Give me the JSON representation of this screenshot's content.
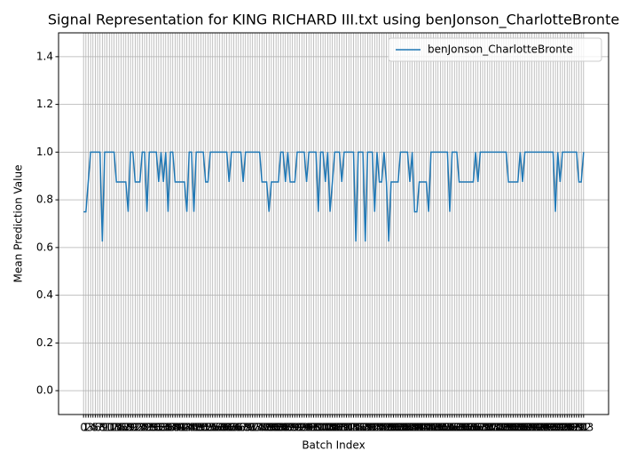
{
  "chart_data": {
    "type": "line",
    "title": "Signal Representation for KING RICHARD III.txt using benJonson_CharlotteBronte",
    "xlabel": "Batch Index",
    "ylabel": "Mean Prediction Value",
    "x": [
      0,
      1,
      2,
      3,
      4,
      5,
      6,
      7,
      8,
      9,
      10,
      11,
      12,
      13,
      14,
      15,
      16,
      17,
      18,
      19,
      20,
      21,
      22,
      23,
      24,
      25,
      26,
      27,
      28,
      29,
      30,
      31,
      32,
      33,
      34,
      35,
      36,
      37,
      38,
      39,
      40,
      41,
      42,
      43,
      44,
      45,
      46,
      47,
      48,
      49,
      50,
      51,
      52,
      53,
      54,
      55,
      56,
      57,
      58,
      59,
      60,
      61,
      62,
      63,
      64,
      65,
      66,
      67,
      68,
      69,
      70,
      71,
      72,
      73,
      74,
      75,
      76,
      77,
      78,
      79,
      80,
      81,
      82,
      83,
      84,
      85,
      86,
      87,
      88,
      89,
      90,
      91,
      92,
      93,
      94,
      95,
      96,
      97,
      98,
      99,
      100,
      101,
      102,
      103,
      104,
      105,
      106,
      107,
      108,
      109,
      110,
      111,
      112,
      113,
      114,
      115,
      116,
      117,
      118,
      119,
      120,
      121,
      122,
      123,
      124,
      125,
      126,
      127,
      128,
      129,
      130,
      131,
      132,
      133,
      134,
      135,
      136,
      137,
      138,
      139,
      140,
      141,
      142,
      143,
      144,
      145,
      146,
      147,
      148,
      149,
      150,
      151,
      152,
      153,
      154,
      155,
      156,
      157,
      158,
      159,
      160,
      161,
      162,
      163,
      164,
      165,
      166,
      167,
      168,
      169,
      170,
      171,
      172,
      173,
      174,
      175,
      176,
      177,
      178,
      179,
      180,
      181,
      182,
      183,
      184,
      185,
      186,
      187,
      188,
      189,
      190,
      191,
      192,
      193,
      194,
      195,
      196,
      197,
      198,
      199,
      200,
      201,
      202,
      203,
      204,
      205,
      206,
      207,
      208,
      209,
      210,
      211,
      212,
      213
    ],
    "series": [
      {
        "name": "benJonson_CharlotteBronte",
        "color": "#1f77b4",
        "values": [
          0.75,
          0.75,
          0.875,
          1,
          1,
          1,
          1,
          1,
          0.625,
          1,
          1,
          1,
          1,
          1,
          0.875,
          0.875,
          0.875,
          0.875,
          0.875,
          0.75,
          1,
          1,
          0.875,
          0.875,
          0.875,
          1,
          1,
          0.75,
          1,
          1,
          1,
          1,
          0.875,
          1,
          0.875,
          1,
          0.75,
          1,
          1,
          0.875,
          0.875,
          0.875,
          0.875,
          0.875,
          0.75,
          1,
          1,
          0.75,
          1,
          1,
          1,
          1,
          0.875,
          0.875,
          1,
          1,
          1,
          1,
          1,
          1,
          1,
          1,
          0.875,
          1,
          1,
          1,
          1,
          1,
          0.875,
          1,
          1,
          1,
          1,
          1,
          1,
          1,
          0.875,
          0.875,
          0.875,
          0.75,
          0.875,
          0.875,
          0.875,
          0.875,
          1,
          1,
          0.875,
          1,
          0.875,
          0.875,
          0.875,
          1,
          1,
          1,
          1,
          0.875,
          1,
          1,
          1,
          1,
          0.75,
          1,
          1,
          0.875,
          1,
          0.75,
          0.875,
          1,
          1,
          1,
          0.875,
          1,
          1,
          1,
          1,
          1,
          0.625,
          1,
          1,
          1,
          0.625,
          1,
          1,
          1,
          0.75,
          1,
          0.875,
          0.875,
          1,
          0.875,
          0.625,
          0.875,
          0.875,
          0.875,
          0.875,
          1,
          1,
          1,
          1,
          0.875,
          1,
          0.75,
          0.75,
          0.875,
          0.875,
          0.875,
          0.875,
          0.75,
          1,
          1,
          1,
          1,
          1,
          1,
          1,
          1,
          0.75,
          1,
          1,
          1,
          0.875,
          0.875,
          0.875,
          0.875,
          0.875,
          0.875,
          0.875,
          1,
          0.875,
          1,
          1,
          1,
          1,
          1,
          1,
          1,
          1,
          1,
          1,
          1,
          1,
          0.875,
          0.875,
          0.875,
          0.875,
          0.875,
          1,
          0.875,
          1,
          1,
          1,
          1,
          1,
          1,
          1,
          1,
          1,
          1,
          1,
          1,
          1,
          0.75,
          1,
          0.875,
          1,
          1,
          1,
          1,
          1,
          1,
          1,
          0.875,
          0.875,
          1
        ]
      }
    ],
    "xlim": [
      -10.65,
      223.65
    ],
    "xticks": [
      0,
      1,
      2,
      3,
      4,
      5,
      6,
      7,
      8,
      9,
      10,
      11,
      12,
      13,
      14,
      15,
      16,
      17,
      18,
      19,
      20,
      21,
      22,
      23,
      24,
      25,
      26,
      27,
      28,
      29,
      30,
      31,
      32,
      33,
      34,
      35,
      36,
      37,
      38,
      39,
      40,
      41,
      42,
      43,
      44,
      45,
      46,
      47,
      48,
      49,
      50,
      51,
      52,
      53,
      54,
      55,
      56,
      57,
      58,
      59,
      60,
      61,
      62,
      63,
      64,
      65,
      66,
      67,
      68,
      69,
      70,
      71,
      72,
      73,
      74,
      75,
      76,
      77,
      78,
      79,
      80,
      81,
      82,
      83,
      84,
      85,
      86,
      87,
      88,
      89,
      90,
      91,
      92,
      93,
      94,
      95,
      96,
      97,
      98,
      99,
      100,
      101,
      102,
      103,
      104,
      105,
      106,
      107,
      108,
      109,
      110,
      111,
      112,
      113,
      114,
      115,
      116,
      117,
      118,
      119,
      120,
      121,
      122,
      123,
      124,
      125,
      126,
      127,
      128,
      129,
      130,
      131,
      132,
      133,
      134,
      135,
      136,
      137,
      138,
      139,
      140,
      141,
      142,
      143,
      144,
      145,
      146,
      147,
      148,
      149,
      150,
      151,
      152,
      153,
      154,
      155,
      156,
      157,
      158,
      159,
      160,
      161,
      162,
      163,
      164,
      165,
      166,
      167,
      168,
      169,
      170,
      171,
      172,
      173,
      174,
      175,
      176,
      177,
      178,
      179,
      180,
      181,
      182,
      183,
      184,
      185,
      186,
      187,
      188,
      189,
      190,
      191,
      192,
      193,
      194,
      195,
      196,
      197,
      198,
      199,
      200,
      201,
      202,
      203,
      204,
      205,
      206,
      207,
      208,
      209,
      210,
      211,
      212,
      213
    ],
    "ylim": [
      -0.1,
      1.5
    ],
    "yticks": [
      {
        "value": 0,
        "label": "0.0"
      },
      0.2,
      0.4,
      0.6,
      0.8,
      {
        "value": 1,
        "label": "1.0"
      },
      1.2,
      1.4
    ],
    "grid": true,
    "legend": "upper right"
  }
}
